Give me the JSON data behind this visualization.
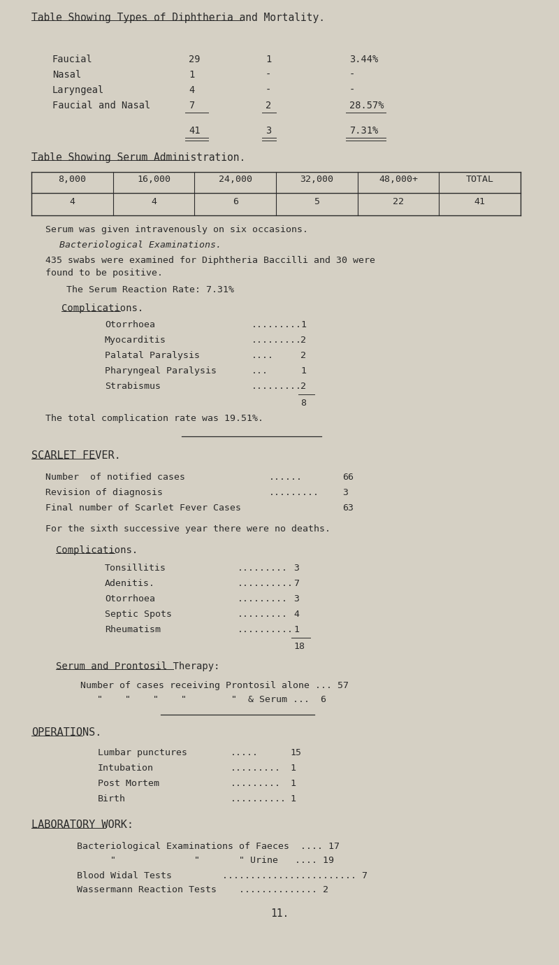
{
  "bg_color": "#d5d0c4",
  "text_color": "#2a2a2a",
  "title1": "Table Showing Types of Diphtheria and Mortality.",
  "title2": "Table Showing Serum Administration.",
  "serum_headers": [
    "8,000",
    "16,000",
    "24,000",
    "32,000",
    "48,000+",
    "TOTAL"
  ],
  "serum_values": [
    "4",
    "4",
    "6",
    "5",
    "22",
    "41"
  ],
  "page_num": "11."
}
